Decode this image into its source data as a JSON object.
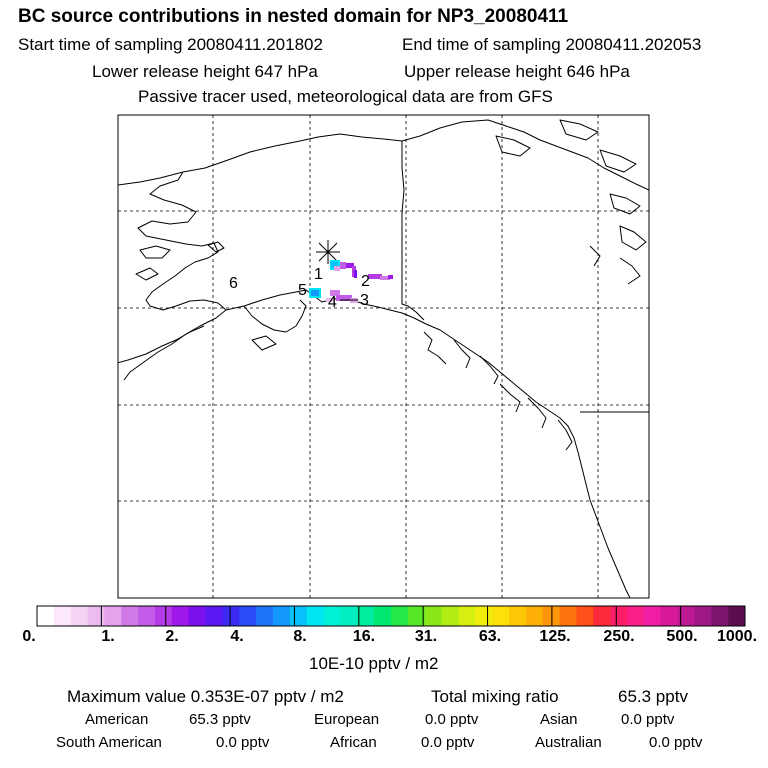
{
  "header": {
    "title": "BC  source contributions in nested domain for NP3_20080411",
    "start_label": "Start time of sampling 20080411.201802",
    "end_label": "End time of sampling 20080411.202053",
    "lower_release": "Lower release height  647 hPa",
    "upper_release": "Upper release height  646 hPa",
    "note": "Passive tracer used, meteorological data are from GFS"
  },
  "map": {
    "region_labels": [
      "1",
      "2",
      "3",
      "4",
      "5",
      "6"
    ],
    "receptor_symbol": "asterisk"
  },
  "colorbar": {
    "tick_labels": [
      "0.",
      "1.",
      "2.",
      "4.",
      "8.",
      "16.",
      "31.",
      "63.",
      "125.",
      "250.",
      "500.",
      "1000."
    ],
    "colors": [
      "#ffffff",
      "#fbe8fb",
      "#f4d3f4",
      "#edbcef",
      "#e4a3ea",
      "#cf7ae6",
      "#c25ce8",
      "#b43ae8",
      "#9f18ea",
      "#7b10ee",
      "#5c18f2",
      "#3c2af4",
      "#2a4cf6",
      "#1d74f8",
      "#1298fa",
      "#08c0fa",
      "#00e6f2",
      "#00f0d8",
      "#00eec0",
      "#00ec9e",
      "#00e870",
      "#22e848",
      "#58e628",
      "#8ae81a",
      "#b2ec14",
      "#d6ee10",
      "#f2ee0c",
      "#fde008",
      "#fec808",
      "#feb008",
      "#fe9408",
      "#fe7410",
      "#fe5018",
      "#fc2a3a",
      "#fc1e66",
      "#fa1e88",
      "#f01ea2",
      "#d81a9a",
      "#bc1a92",
      "#9e1884",
      "#7e1470",
      "#5c0c50"
    ],
    "unit": "10E-10 pptv / m2"
  },
  "stats": {
    "max_label": "Maximum value  0.353E-07 pptv / m2",
    "total_label": "Total mixing ratio",
    "total_value": "65.3 pptv",
    "rows": [
      [
        {
          "label": "American",
          "value": "65.3 pptv"
        },
        {
          "label": "European",
          "value": "0.0 pptv"
        },
        {
          "label": "Asian",
          "value": "0.0 pptv"
        }
      ],
      [
        {
          "label": "South American",
          "value": "0.0 pptv"
        },
        {
          "label": "African",
          "value": "0.0 pptv"
        },
        {
          "label": "Australian",
          "value": "0.0 pptv"
        }
      ]
    ]
  }
}
